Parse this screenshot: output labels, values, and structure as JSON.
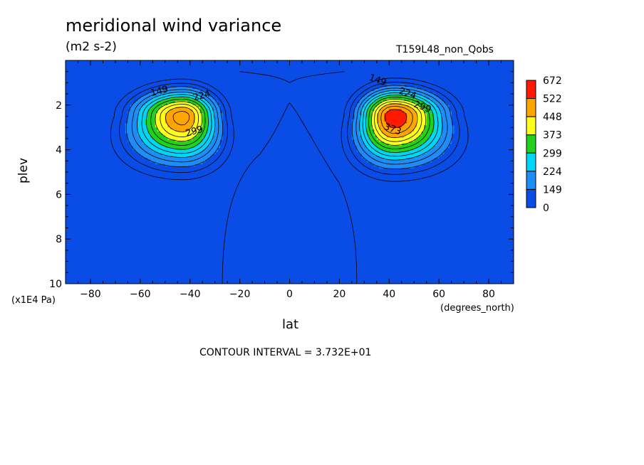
{
  "title": "meridional wind variance",
  "units": "(m2 s-2)",
  "run": "T159L48_non_Qobs",
  "contour_interval": "CONTOUR INTERVAL = 3.732E+01",
  "colors": {
    "levels": [
      "#0a4de6",
      "#1f8df7",
      "#00d5f5",
      "#22d11b",
      "#ffff1f",
      "#ffa500",
      "#ff1a00"
    ],
    "background": "#ffffff"
  },
  "chart_data": {
    "type": "heatmap",
    "title": "meridional wind variance",
    "subtitle": "(m2 s-2)",
    "xlabel": "lat",
    "xunits": "(degrees_north)",
    "ylabel": "plev",
    "yunits": "(x1E4 Pa)",
    "xlim": [
      -90,
      90
    ],
    "ylim": [
      10,
      0
    ],
    "xticks": [
      -80,
      -60,
      -40,
      -20,
      0,
      20,
      40,
      60,
      80
    ],
    "yticks": [
      2,
      4,
      6,
      8,
      10
    ],
    "colorbar_levels": [
      0,
      149,
      224,
      299,
      373,
      448,
      522,
      672
    ],
    "contour_labels": [
      {
        "text": "149",
        "lat": -52,
        "plev": 1.5
      },
      {
        "text": "224",
        "lat": -35,
        "plev": 1.7
      },
      {
        "text": "299",
        "lat": -38,
        "plev": 3.3
      },
      {
        "text": "149",
        "lat": 35,
        "plev": 1.0
      },
      {
        "text": "224",
        "lat": 47,
        "plev": 1.6
      },
      {
        "text": "299",
        "lat": 53,
        "plev": 2.2
      },
      {
        "text": "373",
        "lat": 41,
        "plev": 3.2
      }
    ],
    "field": {
      "description_free_params": true,
      "jets": [
        {
          "lat": -43,
          "plev": 2.5,
          "peak": 505
        },
        {
          "lat": 42,
          "plev": 2.5,
          "peak": 560
        }
      ]
    }
  }
}
